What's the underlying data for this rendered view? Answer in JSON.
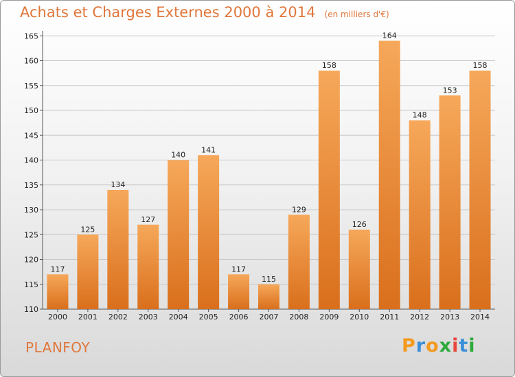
{
  "chart_data": {
    "type": "bar",
    "title": "Achats et Charges Externes 2000 à 2014",
    "subtitle": "(en milliers d'€)",
    "categories": [
      "2000",
      "2001",
      "2002",
      "2003",
      "2004",
      "2005",
      "2006",
      "2007",
      "2008",
      "2009",
      "2010",
      "2011",
      "2012",
      "2013",
      "2014"
    ],
    "values": [
      117,
      125,
      134,
      127,
      140,
      141,
      117,
      115,
      129,
      158,
      126,
      164,
      148,
      153,
      158
    ],
    "ylim": [
      110,
      166
    ],
    "yticks": [
      110,
      115,
      120,
      125,
      130,
      135,
      140,
      145,
      150,
      155,
      160,
      165
    ],
    "grid": true,
    "bar_color": "#f29d4a"
  },
  "footer": {
    "commune": "PLANFOY",
    "brand": [
      "P",
      "r",
      "o",
      "x",
      "i",
      "t",
      "i"
    ],
    "brand_colors": [
      "#f39a1e",
      "#3b8fd9",
      "#f39a1e",
      "#2eaa3c",
      "#e8463b",
      "#3b8fd9",
      "#2eaa3c"
    ]
  }
}
